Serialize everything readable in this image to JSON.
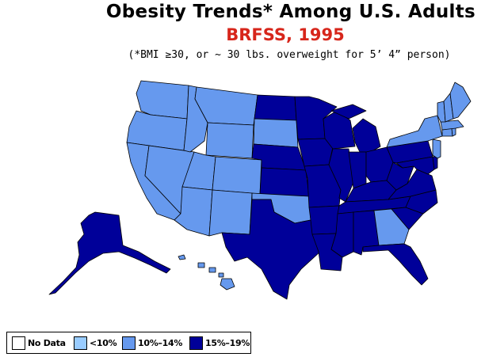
{
  "title": "Obesity Trends*  Among U.S. Adults",
  "subtitle": "BRFSS, 1995",
  "footnote": "(*BMI ≥30, or ~ 30 lbs. overweight for 5’ 4” person)",
  "colors": {
    "no_data": "#ffffff",
    "lt10": "#99ccff",
    "p10_14": "#6699ee",
    "p15_19": "#000099",
    "title2": "#d7261b"
  },
  "legend": [
    {
      "key": "no_data",
      "label": "No Data"
    },
    {
      "key": "lt10",
      "label": "<10%"
    },
    {
      "key": "p10_14",
      "label": "10%–14%"
    },
    {
      "key": "p15_19",
      "label": "15%–19%"
    }
  ],
  "state_categories": {
    "WA": "p10_14",
    "OR": "p10_14",
    "CA": "p10_14",
    "NV": "p10_14",
    "ID": "p10_14",
    "MT": "p10_14",
    "WY": "p10_14",
    "UT": "p10_14",
    "CO": "p10_14",
    "AZ": "p10_14",
    "NM": "p10_14",
    "SD": "p10_14",
    "OK": "p10_14",
    "GA": "p10_14",
    "ME": "p10_14",
    "VT": "p10_14",
    "NH": "p10_14",
    "MA": "p10_14",
    "NY": "p10_14",
    "NJ": "p10_14",
    "CT": "p10_14",
    "RI": "p10_14",
    "HI": "p10_14",
    "ND": "p15_19",
    "NE": "p15_19",
    "KS": "p15_19",
    "TX": "p15_19",
    "MN": "p15_19",
    "IA": "p15_19",
    "MO": "p15_19",
    "AR": "p15_19",
    "LA": "p15_19",
    "WI": "p15_19",
    "IL": "p15_19",
    "MI": "p15_19",
    "IN": "p15_19",
    "OH": "p15_19",
    "KY": "p15_19",
    "TN": "p15_19",
    "MS": "p15_19",
    "AL": "p15_19",
    "FL": "p15_19",
    "SC": "p15_19",
    "NC": "p15_19",
    "VA": "p15_19",
    "WV": "p15_19",
    "PA": "p15_19",
    "MD": "p15_19",
    "DE": "p15_19",
    "AK": "p15_19"
  }
}
